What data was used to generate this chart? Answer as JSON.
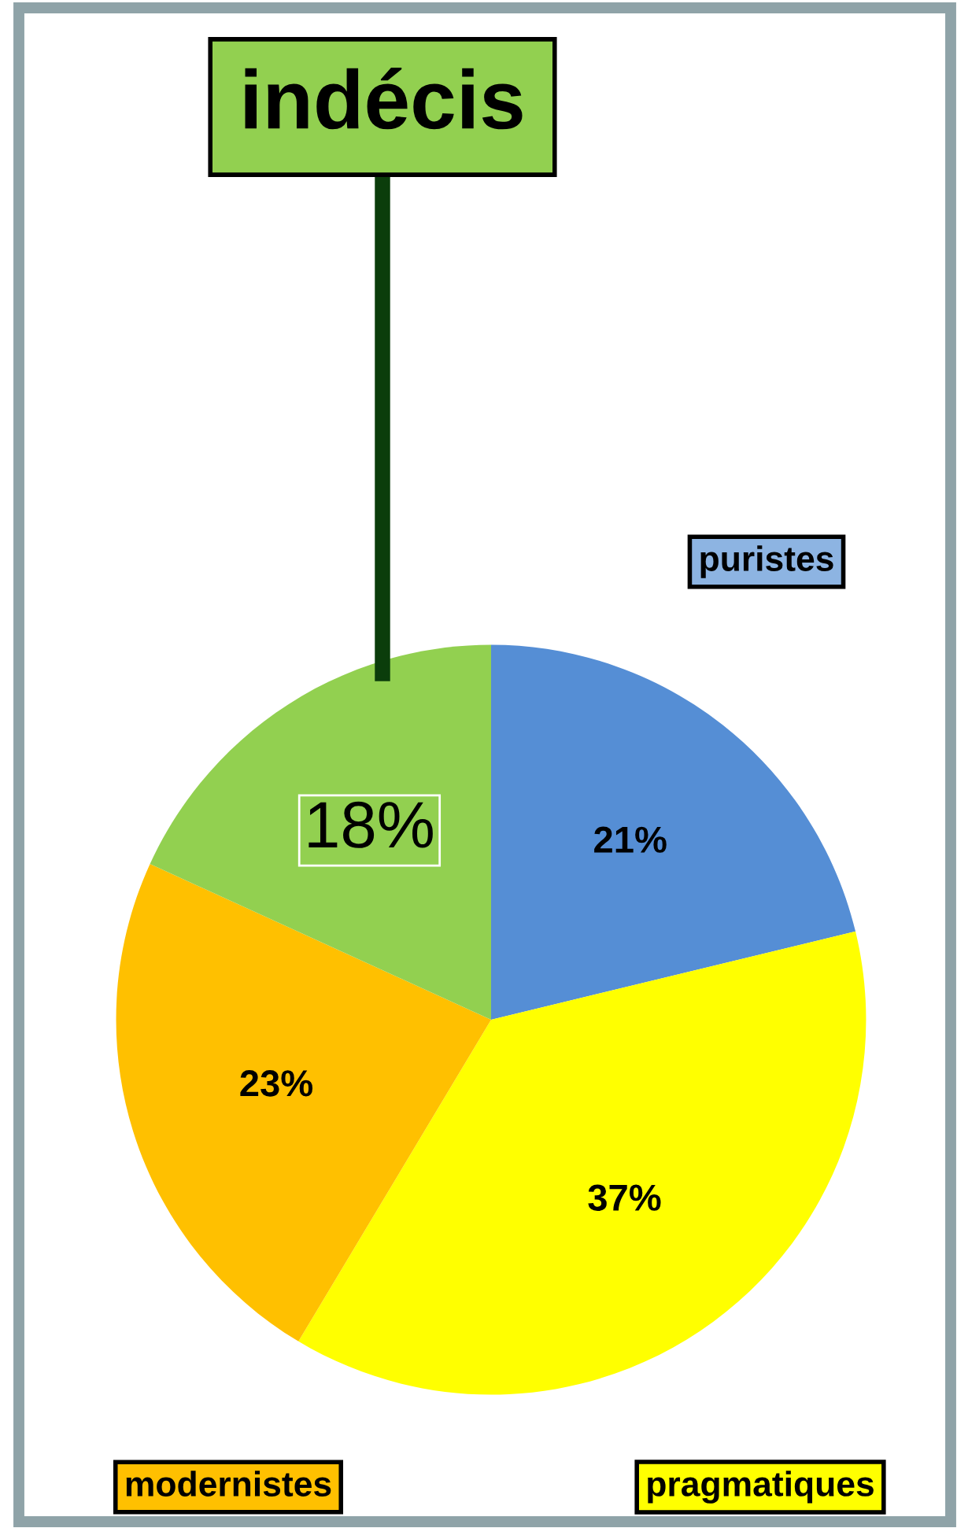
{
  "chart_data": {
    "type": "pie",
    "categories": [
      "puristes",
      "pragmatiques",
      "modernistes",
      "indécis"
    ],
    "values": [
      21,
      37,
      23,
      18
    ],
    "colors": [
      "#558ed5",
      "#ffff00",
      "#ffc000",
      "#92d050"
    ],
    "value_labels": [
      "21%",
      "37%",
      "23%",
      "18%"
    ],
    "legend": false
  }
}
